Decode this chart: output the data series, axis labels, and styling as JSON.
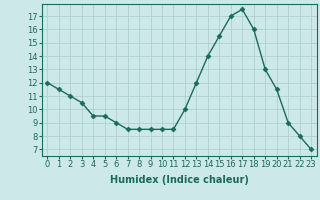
{
  "x": [
    0,
    1,
    2,
    3,
    4,
    5,
    6,
    7,
    8,
    9,
    10,
    11,
    12,
    13,
    14,
    15,
    16,
    17,
    18,
    19,
    20,
    21,
    22,
    23
  ],
  "y": [
    12,
    11.5,
    11,
    10.5,
    9.5,
    9.5,
    9,
    8.5,
    8.5,
    8.5,
    8.5,
    8.5,
    10,
    12,
    14,
    15.5,
    17,
    17.5,
    16,
    13,
    11.5,
    9,
    8,
    7
  ],
  "line_color": "#1a6b5a",
  "marker": "D",
  "marker_size": 2.5,
  "bg_color": "#cce8e8",
  "grid_color": "#aacccc",
  "xlabel": "Humidex (Indice chaleur)",
  "ylabel_ticks": [
    7,
    8,
    9,
    10,
    11,
    12,
    13,
    14,
    15,
    16,
    17
  ],
  "ylim": [
    6.5,
    17.9
  ],
  "xlim": [
    -0.5,
    23.5
  ],
  "tick_color": "#1a6b5a",
  "label_fontsize": 7,
  "tick_fontsize": 6,
  "linewidth": 1.0
}
